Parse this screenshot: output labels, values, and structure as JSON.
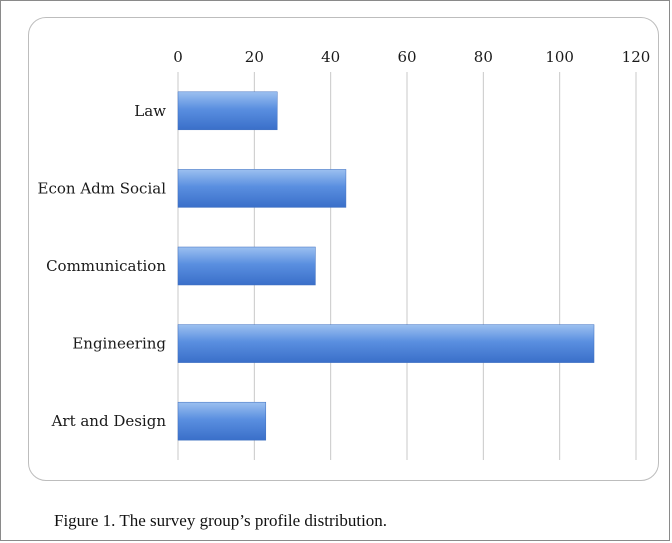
{
  "caption": "Figure 1. The survey group’s profile distribution.",
  "chart_data": {
    "type": "bar",
    "orientation": "horizontal",
    "categories": [
      "Law",
      "Econ Adm Social",
      "Communication",
      "Engineering",
      "Art and Design"
    ],
    "values": [
      26,
      44,
      36,
      109,
      23
    ],
    "xlim": [
      0,
      120
    ],
    "xticks": [
      0,
      20,
      40,
      60,
      80,
      100,
      120
    ],
    "x_axis_position": "top",
    "grid": true,
    "legend": "none",
    "bar_color": "#4f86d9"
  }
}
